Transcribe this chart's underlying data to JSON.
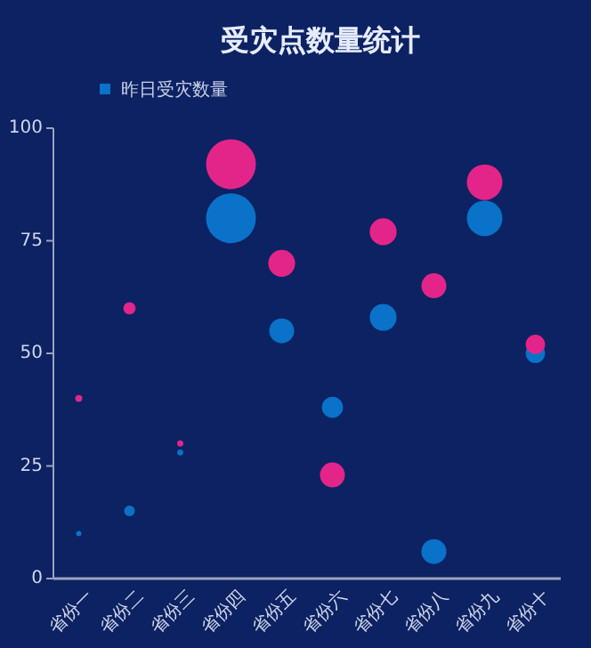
{
  "chart_data": {
    "type": "bubble",
    "title": "受灾点数量统计",
    "categories": [
      "省份一",
      "省份二",
      "省份三",
      "省份四",
      "省份五",
      "省份六",
      "省份七",
      "省份八",
      "省份九",
      "省份十"
    ],
    "series": [
      {
        "name": "昨日受灾数量",
        "color": "#0a72c8",
        "values": [
          10,
          15,
          28,
          80,
          55,
          38,
          58,
          6,
          80,
          50
        ],
        "sizes": [
          0.011,
          0.046,
          0.015,
          1,
          0.25,
          0.18,
          0.29,
          0.25,
          0.51,
          0.15
        ]
      },
      {
        "color": "#e3258a",
        "values": [
          40,
          60,
          30,
          92,
          70,
          23,
          77,
          65,
          88,
          52
        ],
        "sizes": [
          0.02,
          0.06,
          0.015,
          1,
          0.29,
          0.25,
          0.29,
          0.25,
          0.51,
          0.15
        ]
      }
    ],
    "ylim": [
      0,
      100
    ],
    "yticks": [
      0,
      25,
      50,
      75,
      100
    ],
    "legend": "top left",
    "marker": "circle"
  }
}
